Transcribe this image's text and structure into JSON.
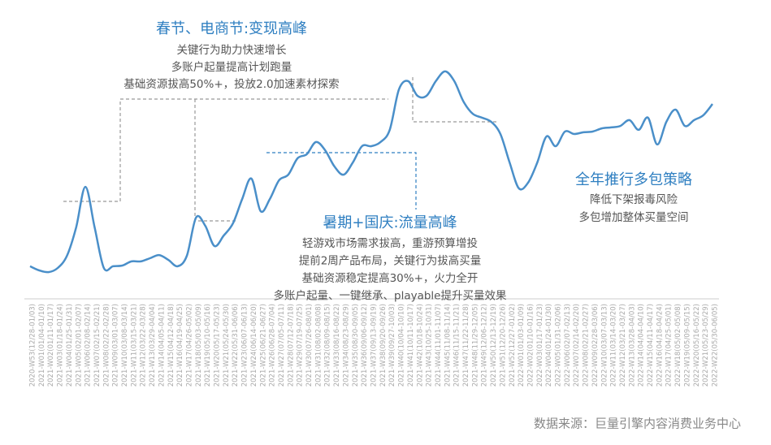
{
  "chart_data": {
    "type": "line",
    "categories": [
      "2020-W53(12/28-01/03)",
      "2021-W01(01/04-01/10)",
      "2021-W02(01/11-01/17)",
      "2021-W03(01/18-01/24)",
      "2021-W04(01/25-01/31)",
      "2021-W05(02/01-02/07)",
      "2021-W06(02/08-02/14)",
      "2021-W07(02/15-02/21)",
      "2021-W08(02/22-02/28)",
      "2021-W09(03/01-03/07)",
      "2021-W10(03/08-03/14)",
      "2021-W11(03/15-03/21)",
      "2021-W12(03/22-03/28)",
      "2021-W13(03/29-04/04)",
      "2021-W14(04/05-04/11)",
      "2021-W15(04/12-04/18)",
      "2021-W16(04/19-04/25)",
      "2021-W17(04/26-05/02)",
      "2021-W18(05/03-05/09)",
      "2021-W19(05/10-05/16)",
      "2021-W20(05/17-05/23)",
      "2021-W21(05/24-05/30)",
      "2021-W22(05/31-06/06)",
      "2021-W23(06/07-06/13)",
      "2021-W24(06/14-06/20)",
      "2021-W25(06/21-06/27)",
      "2021-W26(06/28-07/04)",
      "2021-W27(07/05-07/11)",
      "2021-W28(07/12-07/18)",
      "2021-W29(07/19-07/25)",
      "2021-W30(07/26-08/01)",
      "2021-W31(08/02-08/08)",
      "2021-W32(08/09-08/15)",
      "2021-W33(08/16-08/22)",
      "2021-W34(08/23-08/29)",
      "2021-W35(08/30-09/05)",
      "2021-W36(09/06-09/12)",
      "2021-W37(09/13-09/19)",
      "2021-W38(09/20-09/26)",
      "2021-W39(09/27-10/03)",
      "2021-W40(10/04-10/10)",
      "2021-W41(10/11-10/17)",
      "2021-W42(10/18-10/24)",
      "2021-W43(10/25-10/31)",
      "2021-W44(11/01-11/07)",
      "2021-W45(11/08-11/14)",
      "2021-W46(11/15-11/21)",
      "2021-W47(11/22-11/28)",
      "2021-W48(11/29-12/05)",
      "2021-W49(12/06-12/12)",
      "2021-W50(12/13-12/19)",
      "2021-W51(12/20-12/26)",
      "2021-W52(12/27-01/02)",
      "2022-W01(01/03-01/09)",
      "2022-W02(01/10-01/16)",
      "2022-W03(01/17-01/23)",
      "2022-W04(01/24-01/30)",
      "2022-W05(01/31-02/06)",
      "2022-W06(02/07-02/13)",
      "2022-W07(02/14-02/20)",
      "2022-W08(02/21-02/27)",
      "2022-W09(02/28-03/06)",
      "2022-W10(03/07-03/13)",
      "2022-W11(03/14-03/20)",
      "2022-W12(03/21-03/27)",
      "2022-W13(03/28-04/03)",
      "2022-W14(04/04-04/10)",
      "2022-W15(04/11-04/17)",
      "2022-W16(04/18-04/24)",
      "2022-W17(04/25-05/01)",
      "2022-W18(05/02-05/08)",
      "2022-W19(05/09-05/15)",
      "2022-W20(05/16-05/22)",
      "2022-W21(05/23-05/29)",
      "2022-W22(05/30-06/05)"
    ],
    "values": [
      10.7,
      9,
      8.3,
      10,
      15,
      26.7,
      43.3,
      26.7,
      10,
      10.7,
      11,
      12.7,
      12.7,
      14,
      15.3,
      13.3,
      10.7,
      15,
      30.7,
      27.3,
      19,
      23.3,
      28.3,
      38.3,
      46.7,
      33.3,
      38.3,
      46,
      48.3,
      55,
      56.7,
      61.7,
      58.3,
      51.7,
      48.3,
      53.3,
      60,
      60,
      61.7,
      66.7,
      83.3,
      86.7,
      80.7,
      80.7,
      86.7,
      90.7,
      86.7,
      78.3,
      73.3,
      71.7,
      70,
      65,
      53.3,
      42.7,
      45,
      53.3,
      64,
      60,
      66,
      65,
      65.7,
      66,
      67.3,
      67.7,
      68.3,
      70.7,
      66.7,
      71.7,
      60.7,
      70,
      75,
      68.3,
      70.7,
      72.7,
      77.3
    ],
    "color": "#4a8fc9",
    "ylim": [
      0,
      100
    ],
    "annotations": [
      {
        "title": "春节、电商节:变现高峰",
        "lines": [
          "关键行为助力快速增长",
          "多账户起量提高计划跑量",
          "基础资源拔高50%+，投放2.0加速素材探索"
        ]
      },
      {
        "title": "暑期+国庆:流量高峰",
        "lines": [
          "轻游戏市场需求拔高，重游预算增投",
          "提前2周产品布局，关键行为拔高买量",
          "基础资源稳定提高30%+，火力全开",
          "多账户起量、一键继承、playable提升买量效果"
        ]
      },
      {
        "title": "全年推行多包策略",
        "lines": [
          "降低下架报毒风险",
          "多包增加整体买量空间"
        ]
      }
    ],
    "source": "数据来源：巨量引擎内容消费业务中心"
  }
}
